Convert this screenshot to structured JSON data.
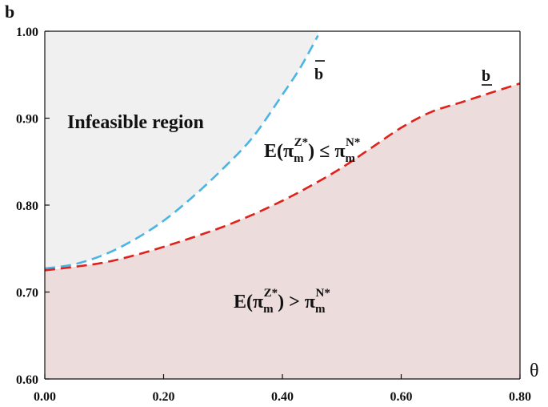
{
  "chart_data": {
    "type": "area",
    "title": "",
    "xlabel": "θ",
    "ylabel": "b",
    "xlim": [
      0,
      0.8
    ],
    "ylim": [
      0.6,
      1.0
    ],
    "x_ticks": [
      0,
      0.2,
      0.4,
      0.6,
      0.8
    ],
    "x_tick_labels": [
      "0.00",
      "0.20",
      "0.40",
      "0.60",
      "0.80"
    ],
    "y_ticks": [
      0.6,
      0.7,
      0.8,
      0.9,
      1.0
    ],
    "y_tick_labels": [
      "0.60",
      "0.70",
      "0.80",
      "0.90",
      "1.00"
    ],
    "grid": false,
    "series": [
      {
        "name": "b̄",
        "label": "b",
        "style": "dashed",
        "color": "#4ab4e6",
        "x": [
          0.0,
          0.05,
          0.1,
          0.15,
          0.2,
          0.25,
          0.3,
          0.35,
          0.4,
          0.43,
          0.46
        ],
        "y": [
          0.727,
          0.732,
          0.743,
          0.76,
          0.782,
          0.81,
          0.842,
          0.878,
          0.927,
          0.958,
          0.995
        ]
      },
      {
        "name": "b̲",
        "label": "b",
        "style": "dashed",
        "color": "#e0201b",
        "x": [
          0.0,
          0.05,
          0.1,
          0.15,
          0.2,
          0.25,
          0.3,
          0.35,
          0.4,
          0.45,
          0.5,
          0.55,
          0.6,
          0.65,
          0.7,
          0.75,
          0.8
        ],
        "y": [
          0.725,
          0.729,
          0.734,
          0.742,
          0.752,
          0.763,
          0.775,
          0.789,
          0.805,
          0.823,
          0.843,
          0.866,
          0.889,
          0.907,
          0.918,
          0.929,
          0.94
        ]
      }
    ],
    "regions": {
      "infeasible": {
        "label": "Infeasible region",
        "fill": "#f0f0f1"
      },
      "between": {
        "lhs": "E(π",
        "lhs_sup": "Z*",
        "lhs_sub": "m",
        "lhs_close": ")",
        "op": "≤",
        "rhs": "π",
        "rhs_sup": "N*",
        "rhs_sub": "m",
        "fill": "#ffffff"
      },
      "below": {
        "lhs": "E(π",
        "lhs_sup": "Z*",
        "lhs_sub": "m",
        "lhs_close": ")",
        "op": ">",
        "rhs": "π",
        "rhs_sup": "N*",
        "rhs_sub": "m",
        "fill": "#ecdcdc"
      }
    }
  }
}
